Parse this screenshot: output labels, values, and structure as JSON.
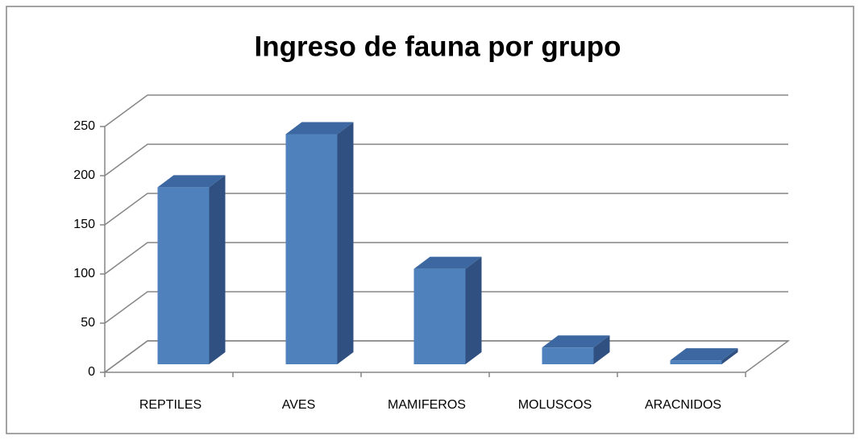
{
  "chart_data": {
    "type": "bar3d",
    "title": "Ingreso de fauna por grupo",
    "categories": [
      "REPTILES",
      "AVES",
      "MAMIFEROS",
      "MOLUSCOS",
      "ARACNIDOS"
    ],
    "values": [
      180,
      234,
      97,
      17,
      4
    ],
    "color": "#4f81bd",
    "ylim": [
      0,
      250
    ],
    "yticks": [
      0,
      50,
      100,
      150,
      200,
      250
    ],
    "grid": true
  }
}
